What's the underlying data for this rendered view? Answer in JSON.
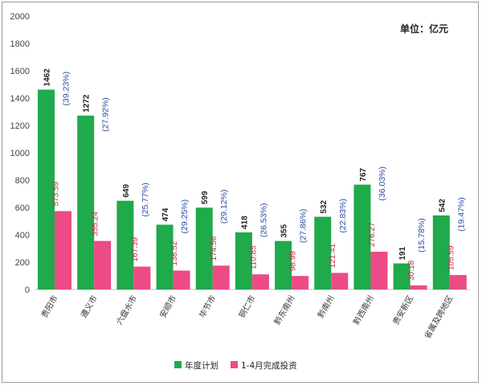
{
  "chart_data": {
    "type": "bar",
    "unit_label": "单位：亿元",
    "categories": [
      "贵阳市",
      "遵义市",
      "六盘水市",
      "安顺市",
      "毕节市",
      "铜仁市",
      "黔东南州",
      "黔南州",
      "黔西南州",
      "贵安新区",
      "省属及跨地区"
    ],
    "series": [
      {
        "name": "年度计划",
        "color": "#1faa4b",
        "values": [
          1462,
          1272,
          649,
          474,
          599,
          418,
          355,
          532,
          767,
          191,
          542
        ],
        "labels": [
          "1462",
          "1272",
          "649",
          "474",
          "599",
          "418",
          "355",
          "532",
          "767",
          "191",
          "542"
        ]
      },
      {
        "name": "1-4月完成投资",
        "color": "#ec4b86",
        "values": [
          573.59,
          355.24,
          167.39,
          138.52,
          174.56,
          110.85,
          98.99,
          121.41,
          276.27,
          30.18,
          105.59
        ],
        "labels": [
          "573.59",
          "355.24",
          "167.39",
          "138.52",
          "174.56",
          "110.85",
          "98.99",
          "121.41",
          "276.27",
          "30.18",
          "105.59"
        ]
      }
    ],
    "percent_labels": [
      "(39.23%)",
      "(27.92%)",
      "(25.77%)",
      "(29.25%)",
      "(29.12%)",
      "(26.53%)",
      "(27.86%)",
      "(22.83%)",
      "(36.03%)",
      "(15.78%)",
      "(19.47%)"
    ],
    "ylim": [
      0,
      2000
    ],
    "yticks": [
      "0",
      "200",
      "400",
      "600",
      "800",
      "1000",
      "1200",
      "1400",
      "1600",
      "1800",
      "2000"
    ],
    "legend_position": "bottom"
  }
}
